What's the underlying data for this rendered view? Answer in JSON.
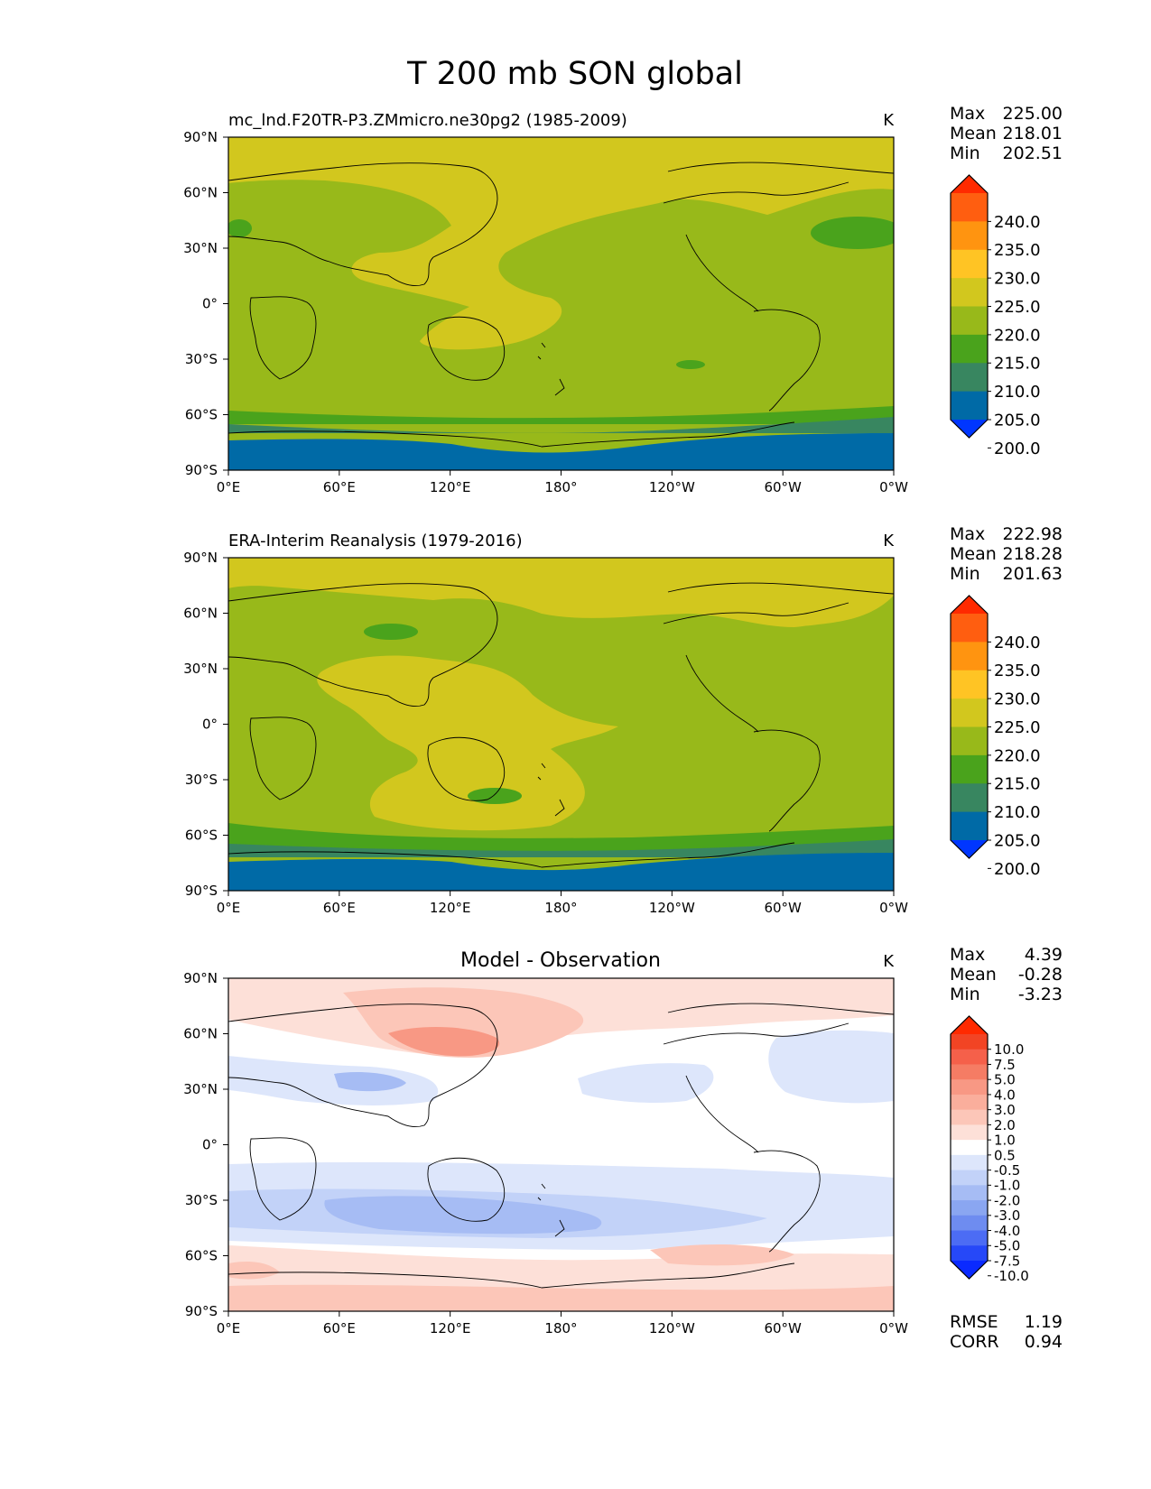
{
  "figure": {
    "title": "T 200 mb SON global"
  },
  "chart_data": [
    {
      "type": "heatmap",
      "subtitle_left": "mc_lnd.F20TR-P3.ZMmicro.ne30pg2 (1985-2009)",
      "subtitle_center": "",
      "units": "K",
      "stats": [
        {
          "label": "Max",
          "value": "225.00"
        },
        {
          "label": "Mean",
          "value": "218.01"
        },
        {
          "label": "Min",
          "value": "202.51"
        }
      ],
      "colorbar": {
        "labels": [
          "240.0",
          "235.0",
          "230.0",
          "225.0",
          "220.0",
          "215.0",
          "210.0",
          "205.0",
          "200.0"
        ],
        "colors": [
          "#ff2a00",
          "#ff5e10",
          "#ff9410",
          "#ffc424",
          "#d2c71e",
          "#98b91a",
          "#4aa31c",
          "#388660",
          "#006aa6",
          "#0036ff"
        ]
      },
      "xticks": [
        "0°E",
        "60°E",
        "120°E",
        "180°",
        "120°W",
        "60°W",
        "0°W"
      ],
      "yticks": [
        "90°N",
        "60°N",
        "30°N",
        "0°",
        "30°S",
        "60°S",
        "90°S"
      ],
      "extra_stats": []
    },
    {
      "type": "heatmap",
      "subtitle_left": "ERA-Interim Reanalysis (1979-2016)",
      "subtitle_center": "",
      "units": "K",
      "stats": [
        {
          "label": "Max",
          "value": "222.98"
        },
        {
          "label": "Mean",
          "value": "218.28"
        },
        {
          "label": "Min",
          "value": "201.63"
        }
      ],
      "colorbar": {
        "labels": [
          "240.0",
          "235.0",
          "230.0",
          "225.0",
          "220.0",
          "215.0",
          "210.0",
          "205.0",
          "200.0"
        ],
        "colors": [
          "#ff2a00",
          "#ff5e10",
          "#ff9410",
          "#ffc424",
          "#d2c71e",
          "#98b91a",
          "#4aa31c",
          "#388660",
          "#006aa6",
          "#0036ff"
        ]
      },
      "xticks": [
        "0°E",
        "60°E",
        "120°E",
        "180°",
        "120°W",
        "60°W",
        "0°W"
      ],
      "yticks": [
        "90°N",
        "60°N",
        "30°N",
        "0°",
        "30°S",
        "60°S",
        "90°S"
      ],
      "extra_stats": []
    },
    {
      "type": "heatmap",
      "subtitle_left": "",
      "subtitle_center": "Model - Observation",
      "units": "K",
      "stats": [
        {
          "label": "Max",
          "value": "4.39"
        },
        {
          "label": "Mean",
          "value": "-0.28"
        },
        {
          "label": "Min",
          "value": "-3.23"
        }
      ],
      "colorbar": {
        "labels": [
          "10.0",
          "7.5",
          "5.0",
          "4.0",
          "3.0",
          "2.0",
          "1.0",
          "0.5",
          "-0.5",
          "-1.0",
          "-2.0",
          "-3.0",
          "-4.0",
          "-5.0",
          "-7.5",
          "-10.0"
        ],
        "colors": [
          "#ff2a00",
          "#f24424",
          "#f5604a",
          "#f57c64",
          "#f89884",
          "#faae9c",
          "#fcc6b8",
          "#fde0d8",
          "#ffffff",
          "#dde6fb",
          "#c2d2f8",
          "#a6bcf4",
          "#8aa6f1",
          "#6e8cf0",
          "#4c6cf4",
          "#2648f8",
          "#0a2aff"
        ]
      },
      "xticks": [
        "0°E",
        "60°E",
        "120°E",
        "180°",
        "120°W",
        "60°W",
        "0°W"
      ],
      "yticks": [
        "90°N",
        "60°N",
        "30°N",
        "0°",
        "30°S",
        "60°S",
        "90°S"
      ],
      "extra_stats": [
        {
          "label": "RMSE",
          "value": "1.19"
        },
        {
          "label": "CORR",
          "value": "0.94"
        }
      ]
    }
  ]
}
